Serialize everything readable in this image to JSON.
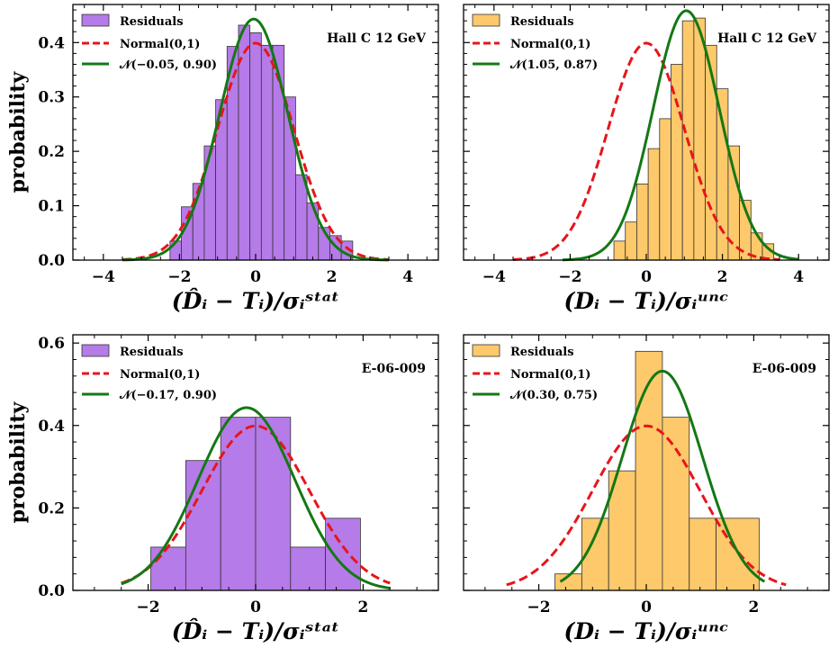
{
  "chart_data": [
    {
      "type": "bar",
      "panel": "top-left",
      "annotation": "Hall C 12 GeV",
      "xlabel": "(D̂ᵢ − Tᵢ)/σᵢˢᵗᵃᵗ",
      "ylabel": "probability",
      "xlim": [
        -4.8,
        4.8
      ],
      "ylim": [
        0,
        0.47
      ],
      "xticks": [
        -4,
        -2,
        0,
        2,
        4
      ],
      "xtick_labels": [
        "−4",
        "−2",
        "0",
        "2",
        "4"
      ],
      "yticks": [
        0,
        0.1,
        0.2,
        0.3,
        0.4
      ],
      "ytick_labels": [
        "0.0",
        "0.1",
        "0.2",
        "0.3",
        "0.4"
      ],
      "histogram": {
        "name": "Residuals",
        "color": "#b57be8",
        "edges": [
          -2.25,
          -1.95,
          -1.65,
          -1.35,
          -1.05,
          -0.75,
          -0.45,
          -0.15,
          0.15,
          0.45,
          0.75,
          1.05,
          1.35,
          1.65,
          1.95,
          2.25,
          2.55
        ],
        "values": [
          0.035,
          0.098,
          0.141,
          0.21,
          0.295,
          0.393,
          0.432,
          0.418,
          0.395,
          0.395,
          0.3,
          0.157,
          0.105,
          0.06,
          0.045,
          0.035
        ]
      },
      "curves": [
        {
          "name": "Normal(0,1)",
          "mu": 0,
          "sigma": 1,
          "x_range": [
            -3.5,
            3.5
          ],
          "color": "#e8141c",
          "dashed": true
        },
        {
          "name": "𝒩(−0.05, 0.90)",
          "mu": -0.05,
          "sigma": 0.9,
          "x_range": [
            -3.5,
            3.5
          ],
          "color": "#147814",
          "dashed": false
        }
      ],
      "legend": "top-left"
    },
    {
      "type": "bar",
      "panel": "top-right",
      "annotation": "Hall C 12 GeV",
      "xlabel": "(Dᵢ − Tᵢ)/σᵢᵘⁿᶜ",
      "ylabel": "",
      "xlim": [
        -4.8,
        4.8
      ],
      "ylim": [
        0,
        0.47
      ],
      "xticks": [
        -4,
        -2,
        0,
        2,
        4
      ],
      "xtick_labels": [
        "−4",
        "−2",
        "0",
        "2",
        "4"
      ],
      "yticks": [
        0,
        0.1,
        0.2,
        0.3,
        0.4
      ],
      "ytick_labels": [
        "",
        "",
        "",
        "",
        ""
      ],
      "histogram": {
        "name": "Residuals",
        "color": "#fdc96b",
        "edges": [
          -0.85,
          -0.55,
          -0.25,
          0.05,
          0.35,
          0.65,
          0.95,
          1.25,
          1.55,
          1.85,
          2.15,
          2.45,
          2.75,
          3.05,
          3.35
        ],
        "values": [
          0.035,
          0.07,
          0.14,
          0.205,
          0.26,
          0.36,
          0.44,
          0.445,
          0.395,
          0.315,
          0.21,
          0.11,
          0.05,
          0.03
        ]
      },
      "curves": [
        {
          "name": "Normal(0,1)",
          "mu": 0,
          "sigma": 1,
          "x_range": [
            -3.5,
            3.5
          ],
          "color": "#e8141c",
          "dashed": true
        },
        {
          "name": "𝒩(1.05, 0.87)",
          "mu": 1.05,
          "sigma": 0.87,
          "x_range": [
            -2.2,
            4.0
          ],
          "color": "#147814",
          "dashed": false
        }
      ],
      "legend": "top-left"
    },
    {
      "type": "bar",
      "panel": "bottom-left",
      "annotation": "E-06-009",
      "xlabel": "(D̂ᵢ − Tᵢ)/σᵢˢᵗᵃᵗ",
      "ylabel": "probability",
      "xlim": [
        -3.4,
        3.4
      ],
      "ylim": [
        0,
        0.62
      ],
      "xticks": [
        -2,
        0,
        2
      ],
      "xtick_labels": [
        "−2",
        "0",
        "2"
      ],
      "yticks": [
        0,
        0.2,
        0.4,
        0.6
      ],
      "ytick_labels": [
        "0.0",
        "0.2",
        "0.4",
        "0.6"
      ],
      "histogram": {
        "name": "Residuals",
        "color": "#b57be8",
        "edges": [
          -1.95,
          -1.3,
          -0.65,
          0.0,
          0.65,
          1.3,
          1.95
        ],
        "values": [
          0.105,
          0.315,
          0.42,
          0.42,
          0.105,
          0.175
        ]
      },
      "curves": [
        {
          "name": "Normal(0,1)",
          "mu": 0,
          "sigma": 1,
          "x_range": [
            -2.5,
            2.5
          ],
          "color": "#e8141c",
          "dashed": true
        },
        {
          "name": "𝒩(−0.17, 0.90)",
          "mu": -0.17,
          "sigma": 0.9,
          "x_range": [
            -2.5,
            2.5
          ],
          "color": "#147814",
          "dashed": false
        }
      ],
      "legend": "top-left"
    },
    {
      "type": "bar",
      "panel": "bottom-right",
      "annotation": "E-06-009",
      "xlabel": "(Dᵢ − Tᵢ)/σᵢᵘⁿᶜ",
      "ylabel": "",
      "xlim": [
        -3.4,
        3.4
      ],
      "ylim": [
        0,
        0.62
      ],
      "xticks": [
        -2,
        0,
        2
      ],
      "xtick_labels": [
        "−2",
        "0",
        "2"
      ],
      "yticks": [
        0,
        0.2,
        0.4,
        0.6
      ],
      "ytick_labels": [
        "",
        "",
        "",
        ""
      ],
      "histogram": {
        "name": "Residuals",
        "color": "#fdc96b",
        "edges": [
          -1.7,
          -1.2,
          -0.7,
          -0.2,
          0.3,
          0.8,
          1.3,
          2.1
        ],
        "values": [
          0.04,
          0.175,
          0.29,
          0.58,
          0.42,
          0.175,
          0.175
        ]
      },
      "curves": [
        {
          "name": "Normal(0,1)",
          "mu": 0,
          "sigma": 1,
          "x_range": [
            -2.6,
            2.6
          ],
          "color": "#e8141c",
          "dashed": true
        },
        {
          "name": "𝒩(0.30, 0.75)",
          "mu": 0.3,
          "sigma": 0.75,
          "x_range": [
            -1.6,
            2.2
          ],
          "color": "#147814",
          "dashed": false
        }
      ],
      "legend": "top-left"
    }
  ]
}
